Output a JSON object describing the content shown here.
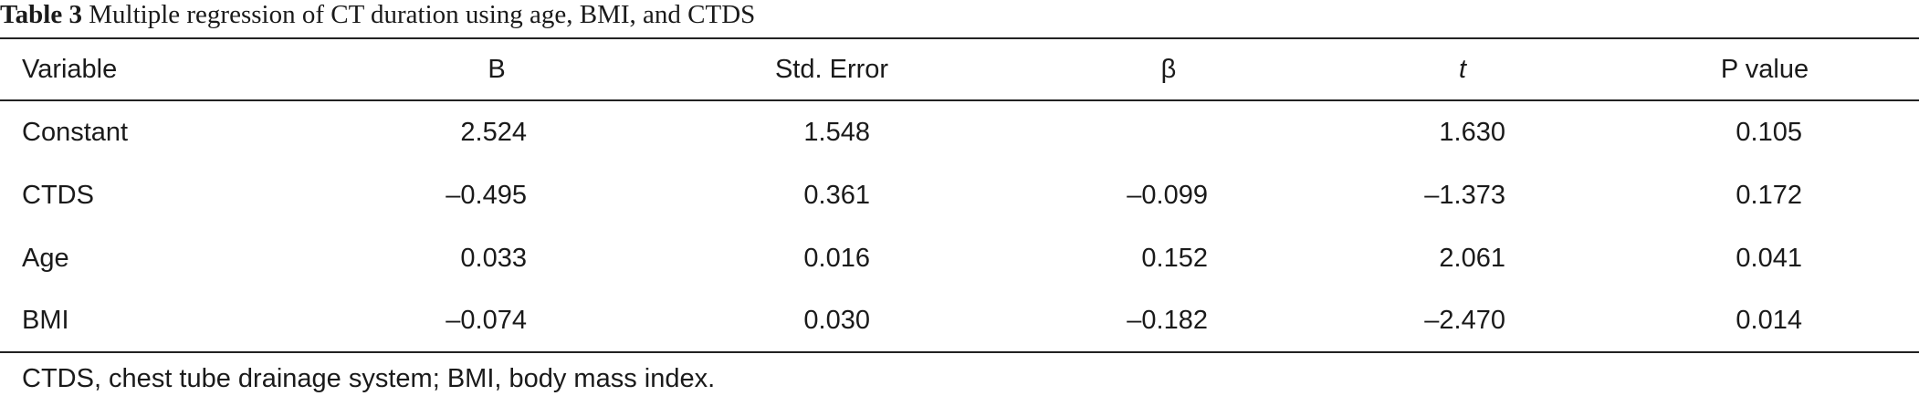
{
  "caption": {
    "label": "Table 3",
    "title": "Multiple regression of CT duration using age, BMI, and CTDS"
  },
  "table": {
    "header": [
      "Variable",
      "B",
      "Std. Error",
      "β",
      "t",
      "P value"
    ],
    "rows": [
      [
        "Constant",
        "2.524",
        "1.548",
        null,
        "1.630",
        "0.105"
      ],
      [
        "CTDS",
        "–0.495",
        "0.361",
        "–0.099",
        "–1.373",
        "0.172"
      ],
      [
        "Age",
        "0.033",
        "0.016",
        "0.152",
        "2.061",
        "0.041"
      ],
      [
        "BMI",
        "–0.074",
        "0.030",
        "–0.182",
        "–2.470",
        "0.014"
      ]
    ]
  },
  "footnote": "CTDS, chest tube drainage system; BMI, body mass index."
}
